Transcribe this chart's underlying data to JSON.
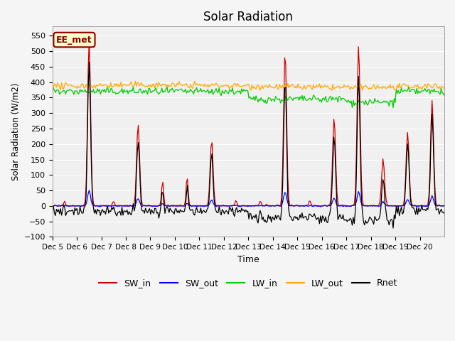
{
  "title": "Solar Radiation",
  "ylabel": "Solar Radiation (W/m2)",
  "xlabel": "Time",
  "ylim": [
    -100,
    580
  ],
  "yticks": [
    -100,
    -50,
    0,
    50,
    100,
    150,
    200,
    250,
    300,
    350,
    400,
    450,
    500,
    550
  ],
  "date_labels": [
    "Dec 5",
    "Dec 6",
    "Dec 7",
    "Dec 8",
    "Dec 9",
    "Dec 10",
    "Dec 11",
    "Dec 12",
    "Dec 13",
    "Dec 14",
    "Dec 15",
    "Dec 16",
    "Dec 17",
    "Dec 18",
    "Dec 19",
    "Dec 20"
  ],
  "legend_labels": [
    "SW_in",
    "SW_out",
    "LW_in",
    "LW_out",
    "Rnet"
  ],
  "colors": {
    "SW_in": "#cc0000",
    "SW_out": "#0000ff",
    "LW_in": "#00cc00",
    "LW_out": "#ffaa00",
    "Rnet": "#000000"
  },
  "annotation_text": "EE_met",
  "annotation_color": "#8b0000",
  "annotation_bg": "#ffffcc",
  "fig_bg": "#f5f5f5",
  "plot_bg": "#f0f0f0"
}
